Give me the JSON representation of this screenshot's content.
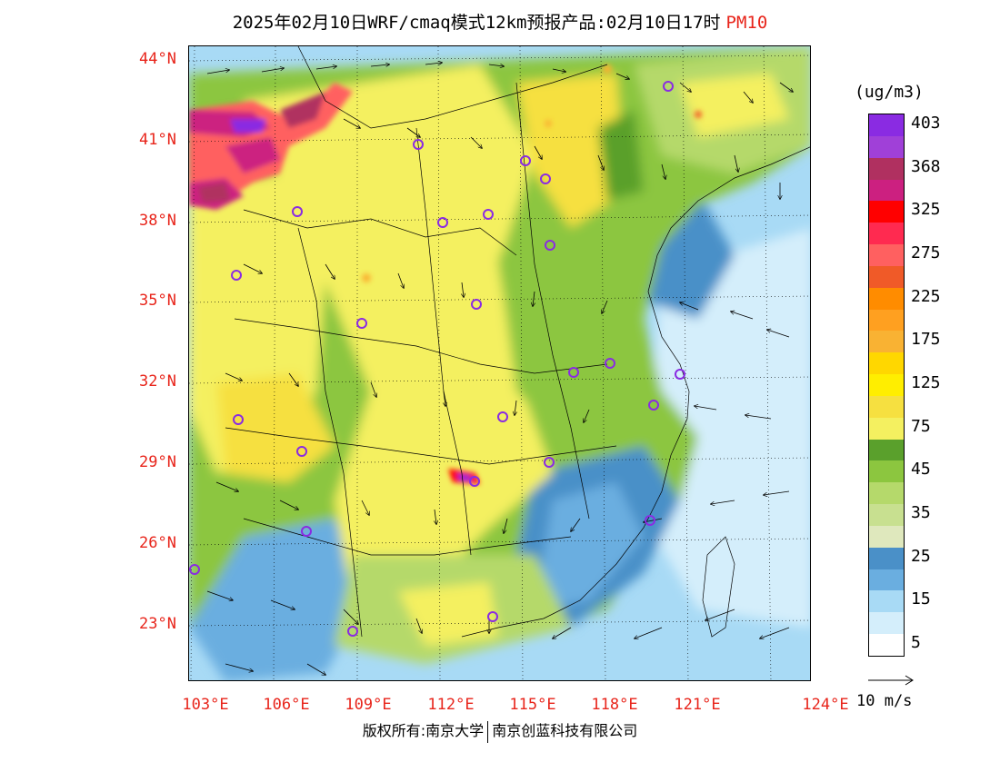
{
  "title": {
    "main": "2025年02月10日WRF/cmaq模式12km预报产品:02月10日17时",
    "pollutant": "PM10"
  },
  "axes": {
    "lat_labels": [
      "44°N",
      "41°N",
      "38°N",
      "35°N",
      "32°N",
      "29°N",
      "26°N",
      "23°N"
    ],
    "lon_labels": [
      "103°E",
      "106°E",
      "109°E",
      "112°E",
      "115°E",
      "118°E",
      "121°E",
      "124°E"
    ]
  },
  "legend": {
    "unit": "(ug/m3)",
    "levels": [
      {
        "label": "403",
        "color": "#8a2be2"
      },
      {
        "label": "",
        "color": "#a040d8"
      },
      {
        "label": "368",
        "color": "#b03060"
      },
      {
        "label": "",
        "color": "#cc2080"
      },
      {
        "label": "325",
        "color": "#ff0000"
      },
      {
        "label": "",
        "color": "#ff2a50"
      },
      {
        "label": "275",
        "color": "#ff6060"
      },
      {
        "label": "",
        "color": "#f05a28"
      },
      {
        "label": "225",
        "color": "#ff8c00"
      },
      {
        "label": "",
        "color": "#ffa020"
      },
      {
        "label": "175",
        "color": "#f9b233"
      },
      {
        "label": "",
        "color": "#ffd700"
      },
      {
        "label": "125",
        "color": "#ffee00"
      },
      {
        "label": "",
        "color": "#f6e040"
      },
      {
        "label": "75",
        "color": "#f4f060"
      },
      {
        "label": "",
        "color": "#5aa02c"
      },
      {
        "label": "45",
        "color": "#8cc63f"
      },
      {
        "label": "",
        "color": "#b5d96b"
      },
      {
        "label": "35",
        "color": "#c8e090"
      },
      {
        "label": "",
        "color": "#dfe8bd"
      },
      {
        "label": "25",
        "color": "#4a90c8"
      },
      {
        "label": "",
        "color": "#6aaee0"
      },
      {
        "label": "15",
        "color": "#a8daf5"
      },
      {
        "label": "",
        "color": "#d4eefb"
      },
      {
        "label": "5",
        "color": "#ffffff"
      }
    ],
    "wind_label": "10 m/s"
  },
  "copyright": {
    "left": "版权所有:南京大学",
    "right": "南京创蓝科技有限公司"
  }
}
